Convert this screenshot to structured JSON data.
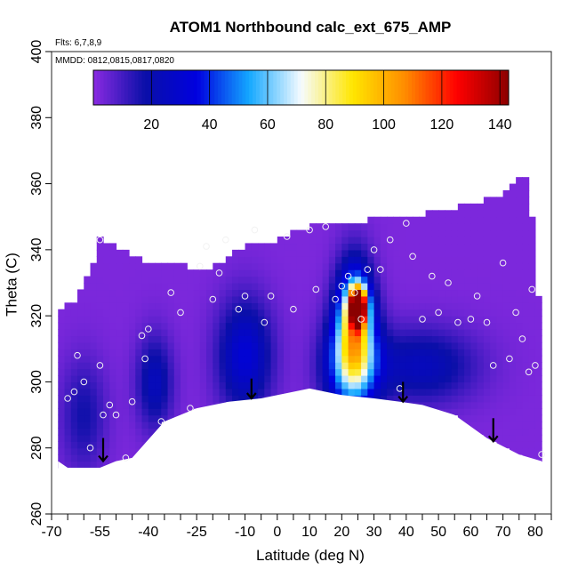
{
  "chart_data": {
    "type": "heatmap",
    "title": "ATOM1 Northbound calc_ext_675_AMP",
    "flights_note": "Flts: 6,7,8,9",
    "dates_note": "MMDD: 0812,0815,0817,0820",
    "xlabel": "Latitude (deg N)",
    "ylabel": "Theta (C)",
    "xlim": [
      -70,
      85
    ],
    "ylim": [
      260,
      400
    ],
    "x_ticks": [
      -70,
      -55,
      -40,
      -25,
      -10,
      0,
      10,
      20,
      30,
      40,
      50,
      60,
      70,
      80
    ],
    "x_tick_labels": [
      "-70",
      "-55",
      "-40",
      "-25",
      "-10",
      "0",
      "10",
      "20",
      "30",
      "40",
      "50",
      "60",
      "70",
      "80"
    ],
    "x_minor_ticks": [
      -65,
      -60,
      -50,
      -45,
      -35,
      -30,
      -20,
      -15,
      -5,
      5,
      15,
      25,
      35,
      45,
      55,
      65,
      75,
      85
    ],
    "y_ticks": [
      260,
      280,
      300,
      320,
      340,
      360,
      380,
      400
    ],
    "y_tick_labels": [
      "260",
      "280",
      "300",
      "320",
      "340",
      "360",
      "380",
      "400"
    ],
    "colorbar": {
      "range": [
        0,
        143
      ],
      "ticks": [
        20,
        40,
        60,
        80,
        100,
        120,
        140
      ],
      "tick_labels": [
        "20",
        "40",
        "60",
        "80",
        "100",
        "120",
        "140"
      ],
      "stops": [
        "#8a2be2",
        "#0a0fa8",
        "#0000e0",
        "#14a8ff",
        "#f6fbff",
        "#ffe600",
        "#ff8c00",
        "#ff0000",
        "#8b0000"
      ]
    },
    "upper_boundary": [
      [
        -68,
        311
      ],
      [
        -67,
        322
      ],
      [
        -62,
        324
      ],
      [
        -57,
        336
      ],
      [
        -55,
        343
      ],
      [
        -45,
        337
      ],
      [
        -38,
        335
      ],
      [
        -28,
        334
      ],
      [
        -20,
        334
      ],
      [
        -10,
        340
      ],
      [
        0,
        342
      ],
      [
        5,
        345
      ],
      [
        18,
        348
      ],
      [
        28,
        348
      ],
      [
        32,
        350
      ],
      [
        45,
        350
      ],
      [
        60,
        353
      ],
      [
        68,
        355
      ],
      [
        75,
        361
      ],
      [
        78,
        361
      ],
      [
        78,
        355
      ],
      [
        80,
        345
      ],
      [
        82,
        305
      ],
      [
        82,
        295
      ]
    ],
    "lower_boundary": [
      [
        -68,
        276
      ],
      [
        -65,
        274
      ],
      [
        -55,
        274
      ],
      [
        -50,
        276
      ],
      [
        -45,
        277
      ],
      [
        -35,
        288
      ],
      [
        -25,
        292
      ],
      [
        -15,
        294
      ],
      [
        -5,
        295
      ],
      [
        10,
        298
      ],
      [
        20,
        296
      ],
      [
        30,
        295
      ],
      [
        38,
        294
      ],
      [
        45,
        293
      ],
      [
        55,
        290
      ],
      [
        65,
        283
      ],
      [
        75,
        278
      ],
      [
        82,
        276
      ]
    ],
    "hotspots": [
      {
        "x": 25,
        "y": 323,
        "value": 140,
        "sx": 1.8,
        "sy": 4
      },
      {
        "x": 24,
        "y": 318,
        "value": 75,
        "sx": 4,
        "sy": 12
      },
      {
        "x": 23,
        "y": 305,
        "value": 48,
        "sx": 6,
        "sy": 10
      },
      {
        "x": -10,
        "y": 308,
        "value": 30,
        "sx": 6,
        "sy": 12
      },
      {
        "x": -38,
        "y": 300,
        "value": 22,
        "sx": 4,
        "sy": 10
      },
      {
        "x": 45,
        "y": 305,
        "value": 22,
        "sx": 12,
        "sy": 8
      },
      {
        "x": -60,
        "y": 290,
        "value": 15,
        "sx": 5,
        "sy": 12
      }
    ],
    "obs_points": [
      [
        -55,
        343
      ],
      [
        -60,
        300
      ],
      [
        -65,
        295
      ],
      [
        -62,
        308
      ],
      [
        -63,
        297
      ],
      [
        -58,
        280
      ],
      [
        -55,
        305
      ],
      [
        -54,
        290
      ],
      [
        -52,
        293
      ],
      [
        -50,
        290
      ],
      [
        -47,
        277
      ],
      [
        -45,
        294
      ],
      [
        -42,
        314
      ],
      [
        -41,
        307
      ],
      [
        -40,
        316
      ],
      [
        -36,
        288
      ],
      [
        -33,
        327
      ],
      [
        -30,
        321
      ],
      [
        -27,
        292
      ],
      [
        -24,
        335
      ],
      [
        -20,
        325
      ],
      [
        -22,
        341
      ],
      [
        -18,
        333
      ],
      [
        -16,
        343
      ],
      [
        -12,
        322
      ],
      [
        -10,
        326
      ],
      [
        -7,
        346
      ],
      [
        -4,
        318
      ],
      [
        -2,
        326
      ],
      [
        3,
        344
      ],
      [
        5,
        322
      ],
      [
        10,
        346
      ],
      [
        12,
        328
      ],
      [
        15,
        347
      ],
      [
        18,
        325
      ],
      [
        20,
        329
      ],
      [
        22,
        332
      ],
      [
        24,
        327
      ],
      [
        26,
        319
      ],
      [
        28,
        334
      ],
      [
        30,
        340
      ],
      [
        32,
        334
      ],
      [
        35,
        343
      ],
      [
        38,
        298
      ],
      [
        40,
        348
      ],
      [
        42,
        338
      ],
      [
        45,
        319
      ],
      [
        48,
        332
      ],
      [
        50,
        321
      ],
      [
        53,
        330
      ],
      [
        56,
        318
      ],
      [
        60,
        319
      ],
      [
        62,
        326
      ],
      [
        65,
        318
      ],
      [
        67,
        305
      ],
      [
        70,
        336
      ],
      [
        72,
        307
      ],
      [
        74,
        321
      ],
      [
        76,
        313
      ],
      [
        78,
        303
      ],
      [
        79,
        328
      ],
      [
        80,
        305
      ],
      [
        82,
        278
      ]
    ],
    "arrows": [
      {
        "x": -54,
        "y_top": 283,
        "y_bottom": 276
      },
      {
        "x": -8,
        "y_top": 301,
        "y_bottom": 295
      },
      {
        "x": 39,
        "y_top": 300,
        "y_bottom": 294
      },
      {
        "x": 67,
        "y_top": 289,
        "y_bottom": 282
      }
    ]
  }
}
